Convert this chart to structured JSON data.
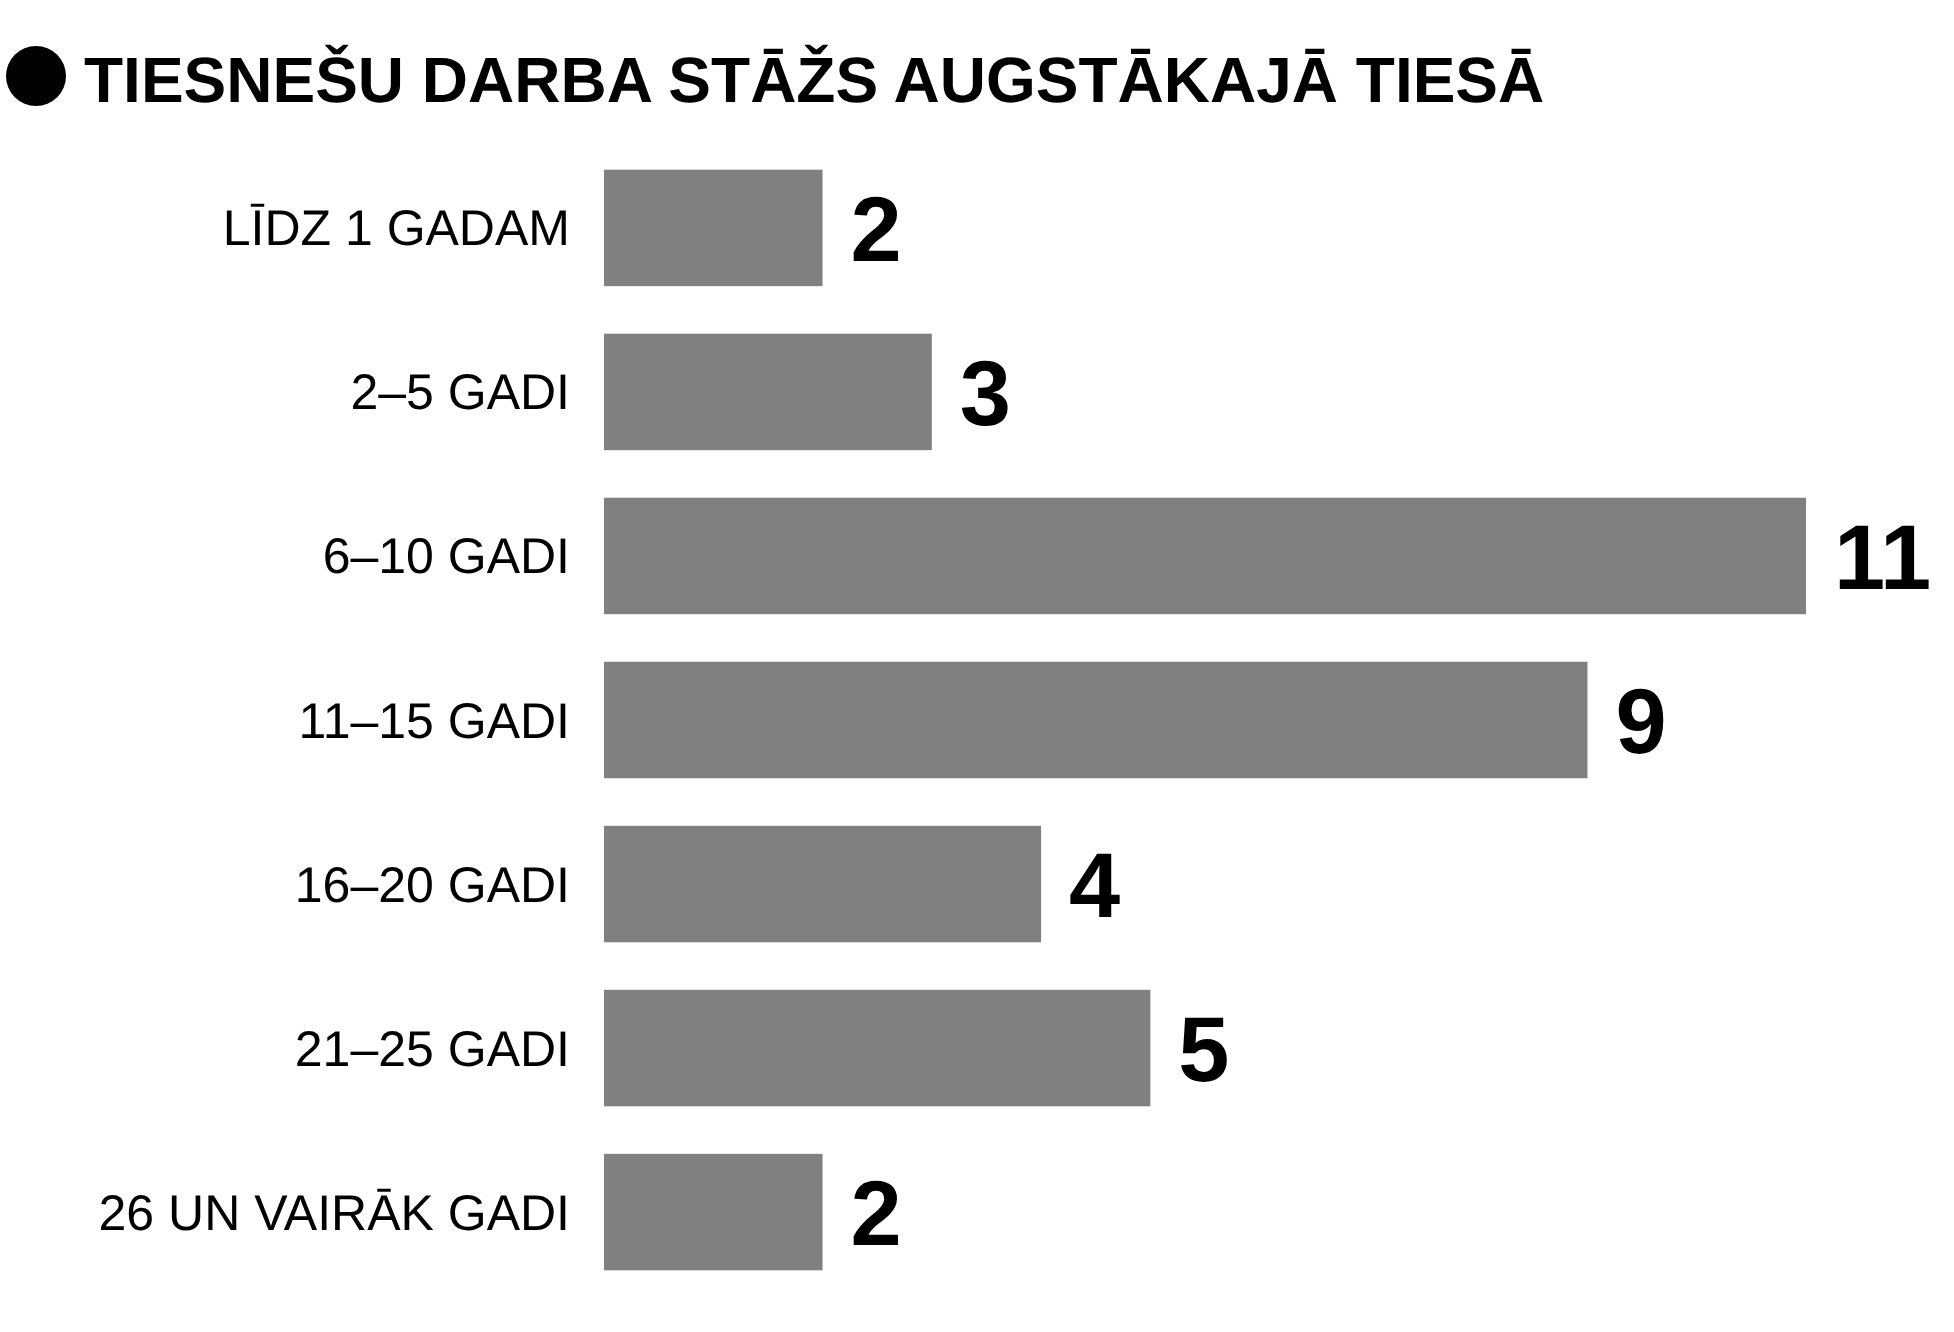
{
  "chart_data": {
    "type": "bar",
    "orientation": "horizontal",
    "title": "TIESNEŠU DARBA STĀŽS AUGSTĀKAJĀ TIESĀ",
    "categories": [
      "LĪDZ 1 GADAM",
      "2–5 GADI",
      "6–10 GADI",
      "11–15 GADI",
      "16–20 GADI",
      "21–25 GADI",
      "26 UN VAIRĀK GADI"
    ],
    "values": [
      2,
      3,
      11,
      9,
      4,
      5,
      2
    ],
    "color": "#808080",
    "data_labels": true
  }
}
